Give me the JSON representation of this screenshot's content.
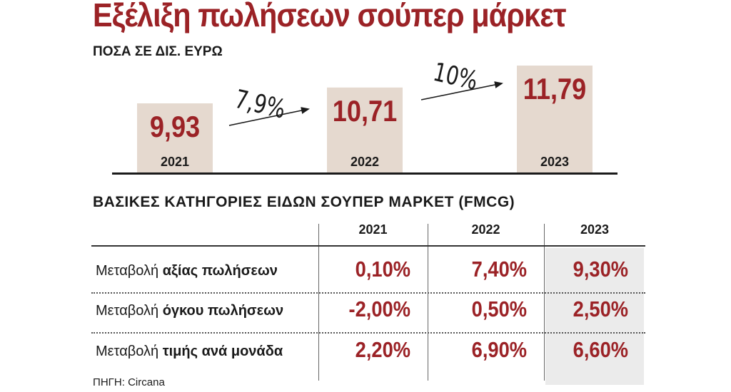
{
  "header": {
    "title": "Εξέλιξη πωλήσεων σούπερ μάρκετ",
    "subtitle": "ΠΟΣΑ ΣΕ ΔΙΣ. ΕΥΡΩ"
  },
  "chart_data": [
    {
      "type": "bar",
      "title": "Εξέλιξη πωλήσεων σούπερ μάρκετ",
      "ylabel": "ΠΟΣΑ ΣΕ ΔΙΣ. ΕΥΡΩ",
      "categories": [
        "2021",
        "2022",
        "2023"
      ],
      "values": [
        9.93,
        10.71,
        11.79
      ],
      "value_labels": [
        "9,93",
        "10,71",
        "11,79"
      ],
      "growth": [
        {
          "from": "2021",
          "to": "2022",
          "label": "7,9%"
        },
        {
          "from": "2022",
          "to": "2023",
          "label": "10%"
        }
      ],
      "bar_color": "#e5d9cf",
      "value_color": "#9b2226"
    },
    {
      "type": "table",
      "title": "ΒΑΣΙΚΕΣ ΚΑΤΗΓΟΡΙΕΣ ΕΙΔΩΝ ΣΟΥΠΕΡ ΜΑΡΚΕΤ (FMCG)",
      "columns": [
        "2021",
        "2022",
        "2023"
      ],
      "rows": [
        {
          "label_prefix": "Μεταβολή",
          "label_bold": "αξίας πωλήσεων",
          "values": [
            "0,10%",
            "7,40%",
            "9,30%"
          ]
        },
        {
          "label_prefix": "Μεταβολή",
          "label_bold": "όγκου πωλήσεων",
          "values": [
            "-2,00%",
            "0,50%",
            "2,50%"
          ]
        },
        {
          "label_prefix": "Μεταβολή",
          "label_bold": "τιμής ανά μονάδα",
          "values": [
            "2,20%",
            "6,90%",
            "6,60%"
          ]
        }
      ],
      "highlight_column": "2023",
      "highlight_color": "#ebebeb"
    }
  ],
  "source": "ΠΗΓΗ: Circana"
}
